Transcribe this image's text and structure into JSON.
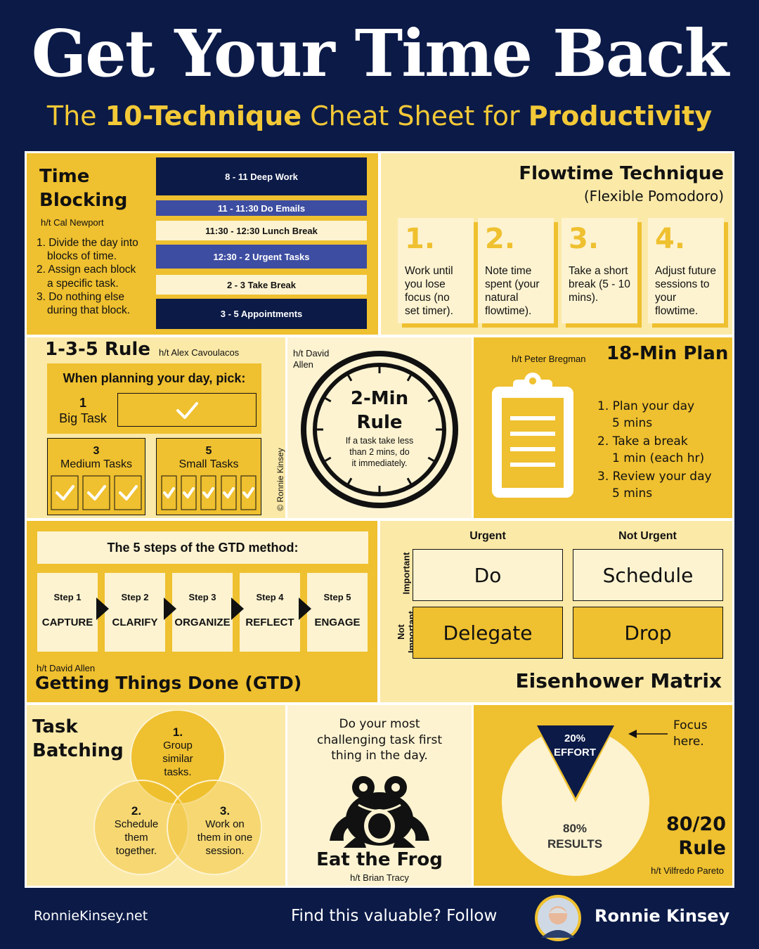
{
  "header": {
    "title": "Get Your Time Back",
    "subtitle_pre": "The ",
    "subtitle_b1": "10-Technique",
    "subtitle_mid": " Cheat Sheet for ",
    "subtitle_b2": "Productivity"
  },
  "time_blocking": {
    "title_l1": "Time",
    "title_l2": "Blocking",
    "credit": "h/t Cal Newport",
    "steps": [
      "1. Divide the day into",
      "blocks of time.",
      "2. Assign each block",
      "a specific task.",
      "3. Do nothing else",
      "during that block."
    ],
    "blocks": [
      "8 - 11 Deep Work",
      "11 - 11:30 Do Emails",
      "11:30 - 12:30 Lunch Break",
      "12:30 - 2 Urgent Tasks",
      "2 - 3 Take Break",
      "3 - 5 Appointments"
    ]
  },
  "flowtime": {
    "title": "Flowtime Technique",
    "subtitle": "(Flexible Pomodoro)",
    "cards": [
      {
        "num": "1.",
        "text": "Work until you lose focus (no set timer)."
      },
      {
        "num": "2.",
        "text": "Note time spent (your natural flowtime)."
      },
      {
        "num": "3.",
        "text": "Take a short break (5 - 10 mins)."
      },
      {
        "num": "4.",
        "text": "Adjust future sessions to your flowtime."
      }
    ]
  },
  "rule135": {
    "title": "1-3-5 Rule",
    "credit": "h/t Alex Cavoulacos",
    "prompt": "When planning your day, pick:",
    "big_num": "1",
    "big_label": "Big Task",
    "medium_num": "3",
    "medium_label": "Medium Tasks",
    "small_num": "5",
    "small_label": "Small Tasks",
    "copyright": "© Ronnie Kinsey"
  },
  "two_min": {
    "credit_l1": "h/t David",
    "credit_l2": "Allen",
    "title_l1": "2-Min",
    "title_l2": "Rule",
    "desc_l1": "If a task take less",
    "desc_l2": "than 2 mins, do",
    "desc_l3": "it immediately."
  },
  "plan18": {
    "credit": "h/t Peter Bregman",
    "title": "18-Min Plan",
    "items": [
      "1. Plan your day",
      "5 mins",
      "2. Take a break",
      "1 min (each hr)",
      "3. Review your day",
      "5 mins"
    ]
  },
  "gtd": {
    "header": "The 5 steps of the GTD method:",
    "steps": [
      {
        "step": "Step 1",
        "name": "CAPTURE"
      },
      {
        "step": "Step 2",
        "name": "CLARIFY"
      },
      {
        "step": "Step 3",
        "name": "ORGANIZE"
      },
      {
        "step": "Step 4",
        "name": "REFLECT"
      },
      {
        "step": "Step 5",
        "name": "ENGAGE"
      }
    ],
    "credit": "h/t David Allen",
    "title": "Getting Things Done (GTD)"
  },
  "eisenhower": {
    "col_urgent": "Urgent",
    "col_not_urgent": "Not Urgent",
    "row_important": "Important",
    "row_not_l1": "Not",
    "row_not_l2": "Important",
    "do": "Do",
    "schedule": "Schedule",
    "delegate": "Delegate",
    "drop": "Drop",
    "title": "Eisenhower Matrix"
  },
  "batching": {
    "title_l1": "Task",
    "title_l2": "Batching",
    "c1": [
      "1.",
      "Group",
      "similar",
      "tasks."
    ],
    "c2": [
      "2.",
      "Schedule",
      "them",
      "together."
    ],
    "c3": [
      "3.",
      "Work on",
      "them in one",
      "session."
    ]
  },
  "frog": {
    "text_l1": "Do your most",
    "text_l2": "challenging task first",
    "text_l3": "thing in the day.",
    "title": "Eat the Frog",
    "credit": "h/t Brian Tracy"
  },
  "pareto": {
    "focus_l1": "Focus",
    "focus_l2": "here.",
    "effort_l1": "20%",
    "effort_l2": "EFFORT",
    "results_l1": "80%",
    "results_l2": "RESULTS",
    "title_l1": "80/20",
    "title_l2": "Rule",
    "credit": "h/t Vilfredo Pareto"
  },
  "footer": {
    "site": "RonnieKinsey.net",
    "cta": "Find this valuable? Follow",
    "name": "Ronnie Kinsey"
  },
  "colors": {
    "navy": "#0b1a47",
    "gold": "#efc02f",
    "light_gold": "#fbe9a8",
    "cream": "#fdf3d1",
    "purple": "#3d4da1"
  }
}
